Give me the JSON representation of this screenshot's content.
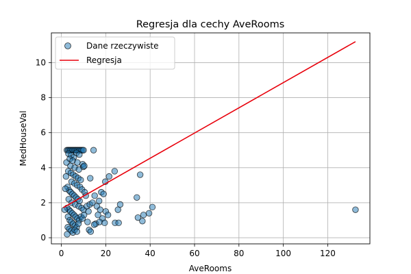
{
  "chart_data": {
    "type": "scatter",
    "title": "Regresja dla cechy AveRooms",
    "xlabel": "AveRooms",
    "ylabel": "MedHouseVal",
    "xlim": [
      -4.5,
      139
    ],
    "ylim": [
      -0.35,
      11.7
    ],
    "xticks": [
      0,
      20,
      40,
      60,
      80,
      100,
      120
    ],
    "yticks": [
      0,
      2,
      4,
      6,
      8,
      10
    ],
    "grid": true,
    "legend_position": "top-left",
    "series": [
      {
        "name": "Dane rzeczywiste",
        "kind": "scatter",
        "color": "#1f77b4",
        "points": [
          [
            2.5,
            5.0
          ],
          [
            3.0,
            5.0
          ],
          [
            3.5,
            5.0
          ],
          [
            4.0,
            5.0
          ],
          [
            4.5,
            5.0
          ],
          [
            5.0,
            5.0
          ],
          [
            5.5,
            5.0
          ],
          [
            6.0,
            5.0
          ],
          [
            6.5,
            5.0
          ],
          [
            7.0,
            5.0
          ],
          [
            7.5,
            5.0
          ],
          [
            8.0,
            5.0
          ],
          [
            8.5,
            5.0
          ],
          [
            9.0,
            5.0
          ],
          [
            9.5,
            5.0
          ],
          [
            10.0,
            5.0
          ],
          [
            14.5,
            5.0
          ],
          [
            3.2,
            4.8
          ],
          [
            4.4,
            4.7
          ],
          [
            5.6,
            4.6
          ],
          [
            6.8,
            4.85
          ],
          [
            8.1,
            4.75
          ],
          [
            3.8,
            4.5
          ],
          [
            5.1,
            4.4
          ],
          [
            7.2,
            4.3
          ],
          [
            9.6,
            4.2
          ],
          [
            4.1,
            4.1
          ],
          [
            6.0,
            4.0
          ],
          [
            7.9,
            3.9
          ],
          [
            9.9,
            4.05
          ],
          [
            10.3,
            4.1
          ],
          [
            3.1,
            3.8
          ],
          [
            4.3,
            3.7
          ],
          [
            5.4,
            3.6
          ],
          [
            6.5,
            3.5
          ],
          [
            7.6,
            3.4
          ],
          [
            8.7,
            3.3
          ],
          [
            4.6,
            3.2
          ],
          [
            5.9,
            3.1
          ],
          [
            7.1,
            3.0
          ],
          [
            13.0,
            3.4
          ],
          [
            8.4,
            2.9
          ],
          [
            9.3,
            2.75
          ],
          [
            10.5,
            2.6
          ],
          [
            11.0,
            2.4
          ],
          [
            2.8,
            2.9
          ],
          [
            3.5,
            2.7
          ],
          [
            4.2,
            2.6
          ],
          [
            5.0,
            2.5
          ],
          [
            5.8,
            2.4
          ],
          [
            6.6,
            2.3
          ],
          [
            7.4,
            2.2
          ],
          [
            8.2,
            2.1
          ],
          [
            3.3,
            2.2
          ],
          [
            4.7,
            2.0
          ],
          [
            6.2,
            1.9
          ],
          [
            7.8,
            1.8
          ],
          [
            9.1,
            1.7
          ],
          [
            10.0,
            1.6
          ],
          [
            2.6,
            1.7
          ],
          [
            3.4,
            1.6
          ],
          [
            4.1,
            1.5
          ],
          [
            4.9,
            1.4
          ],
          [
            5.7,
            1.3
          ],
          [
            6.4,
            1.2
          ],
          [
            7.2,
            1.1
          ],
          [
            8.0,
            1.0
          ],
          [
            8.8,
            1.2
          ],
          [
            9.5,
            1.1
          ],
          [
            10.2,
            1.3
          ],
          [
            3.0,
            1.2
          ],
          [
            3.8,
            1.0
          ],
          [
            4.5,
            0.9
          ],
          [
            5.3,
            0.8
          ],
          [
            6.1,
            0.7
          ],
          [
            6.9,
            0.6
          ],
          [
            7.7,
            0.8
          ],
          [
            2.9,
            0.6
          ],
          [
            3.6,
            0.5
          ],
          [
            4.4,
            0.4
          ],
          [
            5.2,
            0.3
          ],
          [
            6.0,
            0.45
          ],
          [
            2.6,
            0.2
          ],
          [
            7.0,
            0.35
          ],
          [
            12.5,
            0.45
          ],
          [
            13.2,
            0.35
          ],
          [
            1.5,
            1.6
          ],
          [
            1.8,
            2.8
          ],
          [
            2.1,
            3.5
          ],
          [
            2.3,
            4.3
          ],
          [
            11.5,
            1.8
          ],
          [
            12.2,
            1.5
          ],
          [
            11.8,
            0.9
          ],
          [
            12.8,
            1.9
          ],
          [
            14.0,
            2.0
          ],
          [
            15.0,
            2.4
          ],
          [
            16.0,
            1.8
          ],
          [
            17.0,
            2.1
          ],
          [
            18.0,
            2.6
          ],
          [
            19.0,
            2.5
          ],
          [
            16.5,
            1.3
          ],
          [
            17.5,
            1.6
          ],
          [
            18.5,
            1.1
          ],
          [
            20.0,
            1.5
          ],
          [
            21.0,
            1.3
          ],
          [
            15.5,
            0.8
          ],
          [
            17.2,
            0.9
          ],
          [
            19.5,
            0.85
          ],
          [
            14.8,
            0.75
          ],
          [
            19.8,
            3.2
          ],
          [
            21.5,
            3.5
          ],
          [
            24.0,
            3.8
          ],
          [
            24.2,
            0.85
          ],
          [
            25.8,
            0.85
          ],
          [
            25.5,
            1.6
          ],
          [
            26.5,
            1.9
          ],
          [
            34.0,
            2.3
          ],
          [
            35.5,
            3.6
          ],
          [
            34.5,
            1.15
          ],
          [
            36.5,
            0.95
          ],
          [
            37.0,
            1.3
          ],
          [
            39.5,
            1.4
          ],
          [
            41.0,
            1.75
          ],
          [
            132.5,
            1.6
          ]
        ]
      },
      {
        "name": "Regresja",
        "kind": "line",
        "color": "#e8000b",
        "line": [
          [
            0.85,
            1.72
          ],
          [
            132.5,
            11.2
          ]
        ]
      }
    ]
  }
}
